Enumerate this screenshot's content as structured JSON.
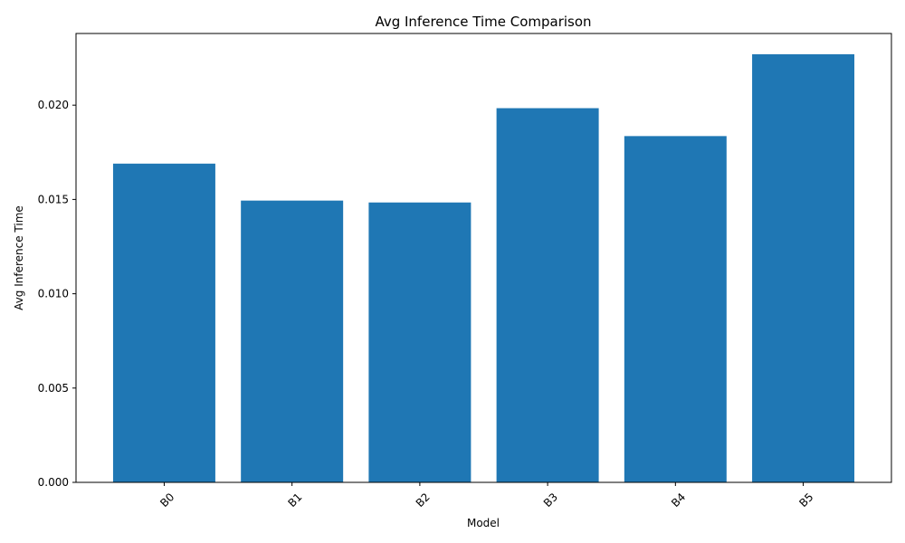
{
  "chart_data": {
    "type": "bar",
    "title": "Avg Inference Time Comparison",
    "xlabel": "Model",
    "ylabel": "Avg Inference Time",
    "categories": [
      "B0",
      "B1",
      "B2",
      "B3",
      "B4",
      "B5"
    ],
    "values": [
      0.0169,
      0.01494,
      0.01484,
      0.01984,
      0.01836,
      0.0227
    ],
    "ylim": [
      0,
      0.0238
    ],
    "yticks": [
      0.0,
      0.005,
      0.01,
      0.015,
      0.02
    ],
    "ytick_labels": [
      "0.000",
      "0.005",
      "0.010",
      "0.015",
      "0.020"
    ],
    "xtick_rotation": 45,
    "grid": false,
    "bar_color": "#1f77b4"
  }
}
